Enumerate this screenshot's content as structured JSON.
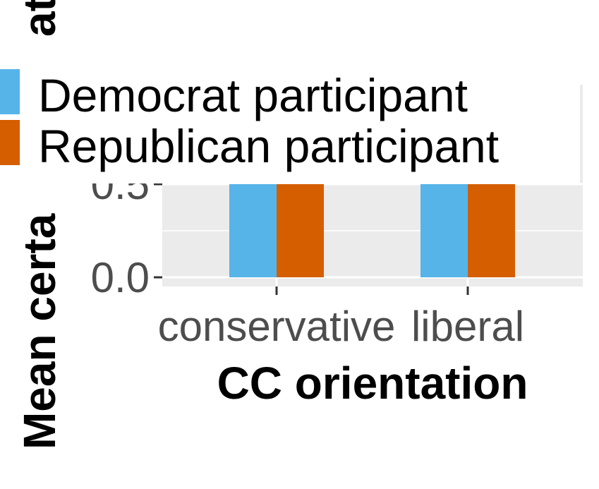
{
  "colors": {
    "panel_bg": "#ebebeb",
    "grid": "#ffffff",
    "tick": "#333333",
    "democrat": "#56b4e9",
    "republican": "#d55e00"
  },
  "chart_data": {
    "type": "bar",
    "categories": [
      "conservative",
      "liberal"
    ],
    "xlabel": "CC orientation",
    "ylabel": "Mean certa",
    "ylabel_top_fragment": "at",
    "y_tick_labels": [
      "0.0",
      "0.5"
    ],
    "y_ticks": [
      0.0,
      0.5
    ],
    "ylim": [
      -0.05,
      0.5
    ],
    "series": [
      {
        "name": "Democrat participant",
        "color": "#56b4e9",
        "values": [
          0.5,
          0.5
        ]
      },
      {
        "name": "Republican participant",
        "color": "#d55e00",
        "values": [
          0.5,
          0.5
        ]
      }
    ],
    "legend_position": "top-left"
  }
}
